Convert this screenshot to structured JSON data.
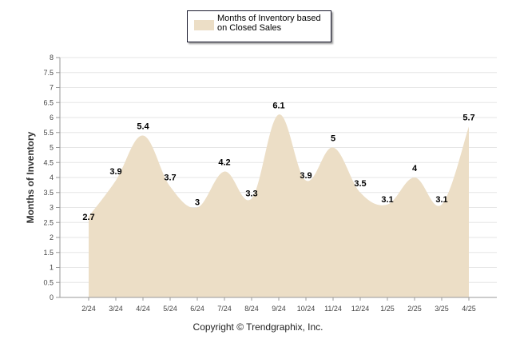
{
  "chart_data": {
    "type": "area",
    "categories": [
      "2/24",
      "3/24",
      "4/24",
      "5/24",
      "6/24",
      "7/24",
      "8/24",
      "9/24",
      "10/24",
      "11/24",
      "12/24",
      "1/25",
      "2/25",
      "3/25",
      "4/25"
    ],
    "series": [
      {
        "name": "Months of Inventory based on Closed Sales",
        "values": [
          2.7,
          3.9,
          5.4,
          3.7,
          3,
          4.2,
          3.3,
          6.1,
          3.9,
          5,
          3.5,
          3.1,
          4,
          3.1,
          5.7
        ],
        "color": "#ecdec6"
      }
    ],
    "ylabel": "Months of Inventory",
    "ylim": [
      0,
      8
    ],
    "yticks": [
      "0",
      "0.5",
      "1",
      "1.5",
      "2",
      "2.5",
      "3",
      "3.5",
      "4",
      "4.5",
      "5",
      "5.5",
      "6",
      "6.5",
      "7",
      "7.5",
      "8"
    ],
    "grid": true,
    "legend_position": "top-center"
  },
  "legend": {
    "label": "Months of Inventory based on Closed Sales"
  },
  "footer": {
    "copyright": "Copyright © Trendgraphix, Inc."
  },
  "colors": {
    "area": "#ecdec6",
    "grid": "#e6e6e6",
    "axis": "#9a9a9a",
    "text": "#333333"
  }
}
